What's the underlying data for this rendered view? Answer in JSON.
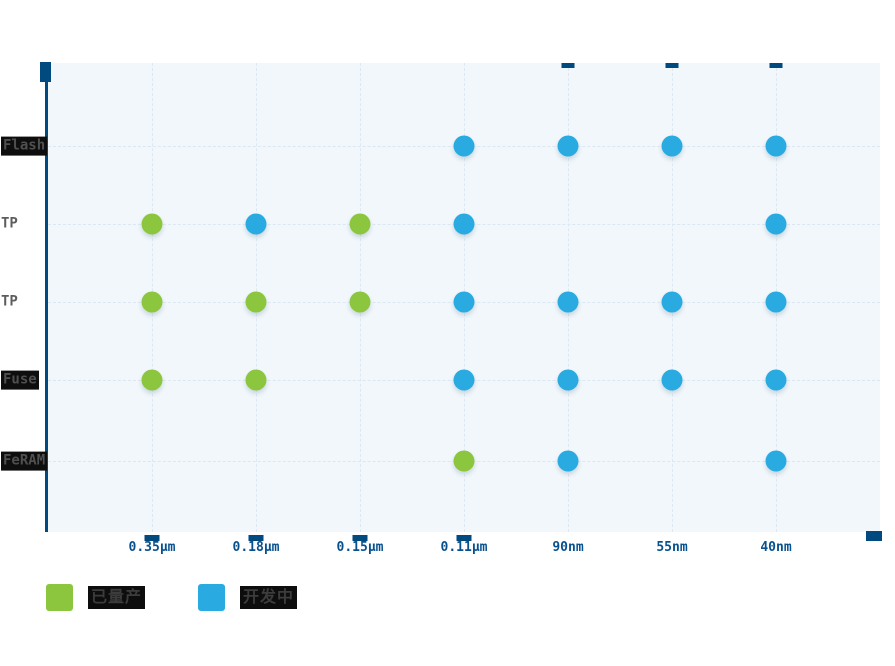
{
  "chart_data": {
    "type": "scatter",
    "title": "",
    "xlabel": "",
    "ylabel": "",
    "x_categories": [
      "0.35μm",
      "0.18μm",
      "0.15μm",
      "0.11μm",
      "90nm",
      "55nm",
      "40nm"
    ],
    "y_categories": [
      {
        "label": "Flash",
        "highlighted": true
      },
      {
        "label": "TP",
        "highlighted": false
      },
      {
        "label": "TP",
        "highlighted": false
      },
      {
        "label": "Fuse",
        "highlighted": true
      },
      {
        "label": "FeRAM",
        "highlighted": true
      }
    ],
    "series": [
      {
        "name": "已量产",
        "color": "#8cc63f",
        "points": [
          [
            0,
            1
          ],
          [
            2,
            1
          ],
          [
            0,
            2
          ],
          [
            1,
            2
          ],
          [
            2,
            2
          ],
          [
            0,
            3
          ],
          [
            1,
            3
          ],
          [
            3,
            4
          ]
        ]
      },
      {
        "name": "开发中",
        "color": "#29abe2",
        "points": [
          [
            3,
            0
          ],
          [
            4,
            0
          ],
          [
            5,
            0
          ],
          [
            6,
            0
          ],
          [
            1,
            1
          ],
          [
            3,
            1
          ],
          [
            6,
            1
          ],
          [
            3,
            2
          ],
          [
            4,
            2
          ],
          [
            5,
            2
          ],
          [
            6,
            2
          ],
          [
            3,
            3
          ],
          [
            4,
            3
          ],
          [
            5,
            3
          ],
          [
            6,
            3
          ],
          [
            4,
            4
          ],
          [
            6,
            4
          ]
        ]
      }
    ],
    "grid": true,
    "legend_position": "bottom-left"
  },
  "legend": {
    "items": [
      {
        "label": "已量产",
        "color": "#8cc63f"
      },
      {
        "label": "开发中",
        "color": "#29abe2"
      }
    ]
  },
  "colors": {
    "axis_navy": "#004a80",
    "plot_background": "#f1f7fb",
    "gridline": "#dde8f2",
    "produced_green": "#8cc63f",
    "developing_blue": "#29abe2",
    "x_label_text": "#07518e"
  }
}
